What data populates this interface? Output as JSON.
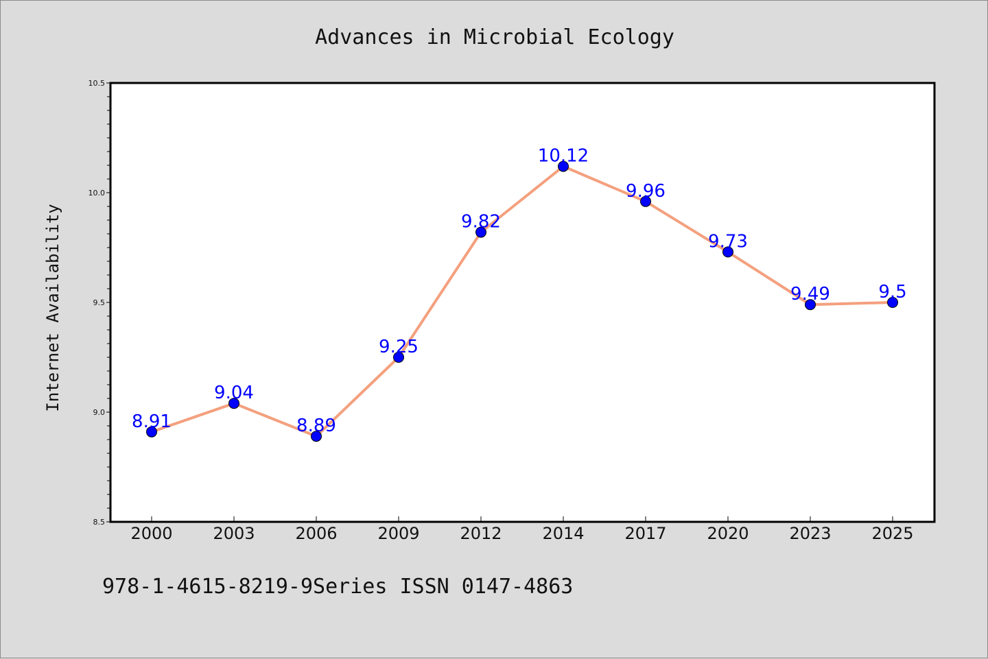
{
  "chart_data": {
    "type": "line",
    "title": "Advances in Microbial Ecology",
    "xlabel": "",
    "ylabel": "Internet Availability",
    "categories": [
      "2000",
      "2003",
      "2006",
      "2009",
      "2012",
      "2014",
      "2017",
      "2020",
      "2023",
      "2025"
    ],
    "series": [
      {
        "values": [
          8.91,
          9.04,
          8.89,
          9.25,
          9.82,
          10.12,
          9.96,
          9.73,
          9.49,
          9.5
        ],
        "data_labels": [
          "8.91",
          "9.04",
          "8.89",
          "9.25",
          "9.82",
          "10.12",
          "9.96",
          "9.73",
          "9.49",
          "9.5"
        ],
        "line_color": "#f4a07e",
        "marker_color": "#0000ff"
      }
    ],
    "ylim": [
      8.5,
      10.5
    ],
    "yticks": [
      "8.5",
      "9.0",
      "9.5",
      "10.0",
      "10.5"
    ],
    "grid": false,
    "legend": "none"
  },
  "footer": "978-1-4615-8219-9Series ISSN 0147-4863"
}
